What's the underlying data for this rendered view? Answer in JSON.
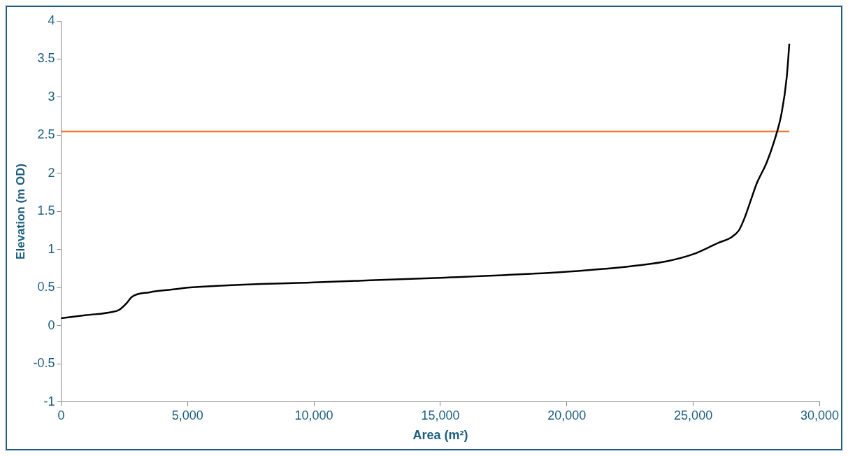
{
  "chart_data": {
    "type": "line",
    "xlabel": "Area (m²)",
    "ylabel": "Elevation (m OD)",
    "xlim": [
      0,
      30000
    ],
    "xticks": [
      0,
      {
        "value": 5000,
        "label": "5,000"
      },
      {
        "value": 10000,
        "label": "10,000"
      },
      {
        "value": 15000,
        "label": "15,000"
      },
      {
        "value": 20000,
        "label": "20,000"
      },
      {
        "value": 25000,
        "label": "25,000"
      },
      {
        "value": 30000,
        "label": "30,000"
      }
    ],
    "ylim": [
      -1,
      4
    ],
    "yticks": [
      -1,
      -0.5,
      0,
      0.5,
      1,
      1.5,
      2,
      2.5,
      3,
      3.5,
      4
    ],
    "grid": false,
    "legend": false,
    "marker": "none",
    "line_style": "solid",
    "series": [
      {
        "color": "#000000",
        "x": [
          0,
          1000,
          2000,
          2300,
          2600,
          2800,
          3500,
          4500,
          5000,
          10000,
          15000,
          20000,
          23000,
          24000,
          25000,
          26000,
          26500,
          26800,
          27000,
          27300,
          27500,
          27900,
          28200,
          28500,
          28700,
          28800
        ],
        "values": [
          0.1,
          0.14,
          0.18,
          0.21,
          0.3,
          0.38,
          0.44,
          0.48,
          0.5,
          0.57,
          0.63,
          0.71,
          0.8,
          0.85,
          0.94,
          1.09,
          1.16,
          1.25,
          1.39,
          1.67,
          1.86,
          2.14,
          2.42,
          2.8,
          3.27,
          3.7
        ]
      },
      {
        "color": "#ed7d31",
        "x": [
          0,
          28800
        ],
        "values": [
          2.55,
          2.55
        ]
      }
    ]
  }
}
